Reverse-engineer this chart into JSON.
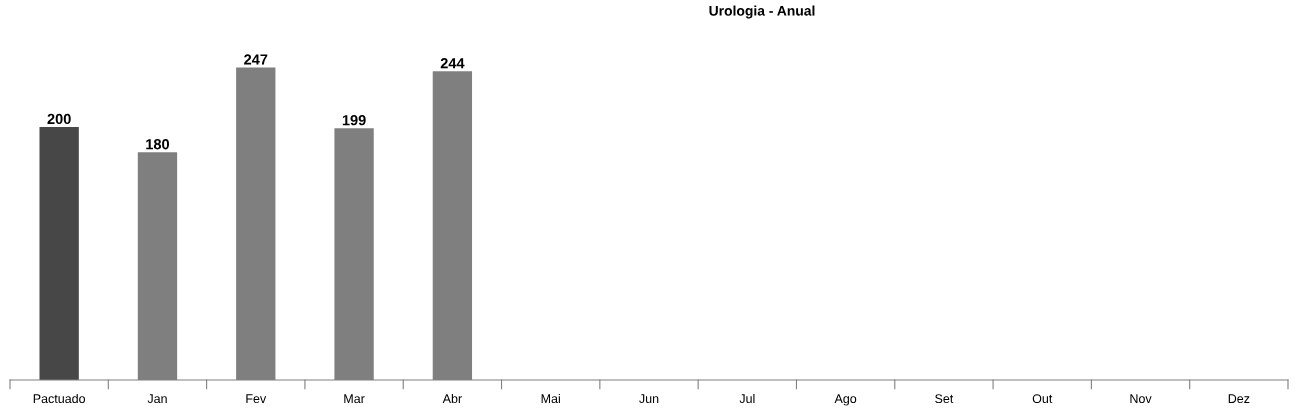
{
  "chart_data": {
    "type": "bar",
    "title": "Urologia - Anual",
    "categories": [
      "Pactuado",
      "Jan",
      "Fev",
      "Mar",
      "Abr",
      "Mai",
      "Jun",
      "Jul",
      "Ago",
      "Set",
      "Out",
      "Nov",
      "Dez"
    ],
    "values": [
      200,
      180,
      247,
      199,
      244,
      null,
      null,
      null,
      null,
      null,
      null,
      null,
      null
    ],
    "colors": [
      "#474747",
      "#7f7f7f",
      "#7f7f7f",
      "#7f7f7f",
      "#7f7f7f",
      "#7f7f7f",
      "#7f7f7f",
      "#7f7f7f",
      "#7f7f7f",
      "#7f7f7f",
      "#7f7f7f",
      "#7f7f7f",
      "#7f7f7f"
    ],
    "data_labels": true,
    "grid": false,
    "legend": false
  }
}
